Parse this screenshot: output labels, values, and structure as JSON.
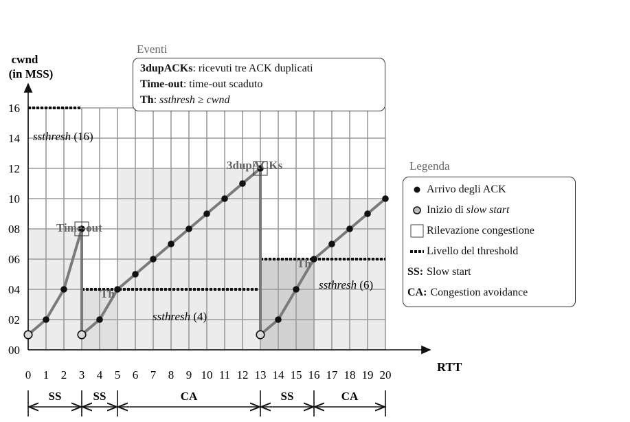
{
  "chart_data": {
    "type": "line",
    "xlabel": "RTT",
    "ylabel_line1": "cwnd",
    "ylabel_line2": "(in MSS)",
    "x_ticks": [
      "0",
      "1",
      "2",
      "3",
      "4",
      "5",
      "6",
      "7",
      "8",
      "9",
      "10",
      "11",
      "12",
      "13",
      "14",
      "15",
      "16",
      "17",
      "18",
      "19",
      "20"
    ],
    "y_ticks": [
      "00",
      "02",
      "04",
      "06",
      "08",
      "10",
      "12",
      "14",
      "16"
    ],
    "xlim": [
      0,
      20
    ],
    "ylim": [
      0,
      16
    ],
    "grid": true,
    "series": [
      {
        "x": [
          0,
          1,
          2,
          3
        ],
        "y": [
          1,
          2,
          4,
          8
        ]
      },
      {
        "x": [
          3,
          4,
          5,
          6,
          7,
          8,
          9,
          10,
          11,
          12,
          13
        ],
        "y": [
          1,
          2,
          4,
          5,
          6,
          7,
          8,
          9,
          10,
          11,
          12
        ]
      },
      {
        "x": [
          13,
          14,
          15,
          16,
          17,
          18,
          19,
          20
        ],
        "y": [
          1,
          2,
          4,
          6,
          7,
          8,
          9,
          10
        ]
      }
    ],
    "slow_start_points": [
      [
        0,
        1
      ],
      [
        3,
        1
      ],
      [
        13,
        1
      ]
    ],
    "congestion_points": [
      [
        3,
        8
      ],
      [
        13,
        12
      ]
    ],
    "threshold_lines": [
      {
        "x": [
          0,
          3
        ],
        "y": 16,
        "label_name": "ssthresh",
        "label_value": "(16)"
      },
      {
        "x": [
          3,
          13
        ],
        "y": 4,
        "label_name": "ssthresh",
        "label_value": "(4)"
      },
      {
        "x": [
          13,
          20
        ],
        "y": 6,
        "label_name": "ssthresh",
        "label_value": "(6)"
      }
    ],
    "annotations": {
      "timeout": "Time-out",
      "dupacks": "3dupACKs",
      "th1": "Th",
      "th2": "Th"
    },
    "phases": [
      {
        "label": "SS",
        "from": 0,
        "to": 3
      },
      {
        "label": "SS",
        "from": 3,
        "to": 5
      },
      {
        "label": "CA",
        "from": 5,
        "to": 13
      },
      {
        "label": "SS",
        "from": 13,
        "to": 16
      },
      {
        "label": "CA",
        "from": 16,
        "to": 20
      }
    ]
  },
  "events": {
    "title": "Eventi",
    "line1_key": "3dupACKs",
    "line1_text": ": ricevuti tre ACK duplicati",
    "line2_key": "Time-out",
    "line2_text": ": time-out scaduto",
    "line3_key": "Th",
    "line3_sep": ": ",
    "line3_var1": "ssthresh",
    "line3_op": " ≥ ",
    "line3_var2": "cwnd"
  },
  "legend": {
    "title": "Legenda",
    "items": [
      {
        "label": "Arrivo degli ACK"
      },
      {
        "label_prefix": "Inizio di ",
        "label_italic": "slow start"
      },
      {
        "label": "Rilevazione congestione"
      },
      {
        "label": "Livello del threshold"
      },
      {
        "key": "SS:",
        "label": "Slow start"
      },
      {
        "key": "CA:",
        "label": "Congestion avoidance"
      }
    ]
  },
  "colors": {
    "shade_light": "#ececec",
    "shade_mid": "#e0e0e0",
    "shade_dark": "#d2d2d2",
    "grid": "#9a9a9a",
    "curve": "#7a7a7a",
    "annotation_text": "#666666"
  }
}
